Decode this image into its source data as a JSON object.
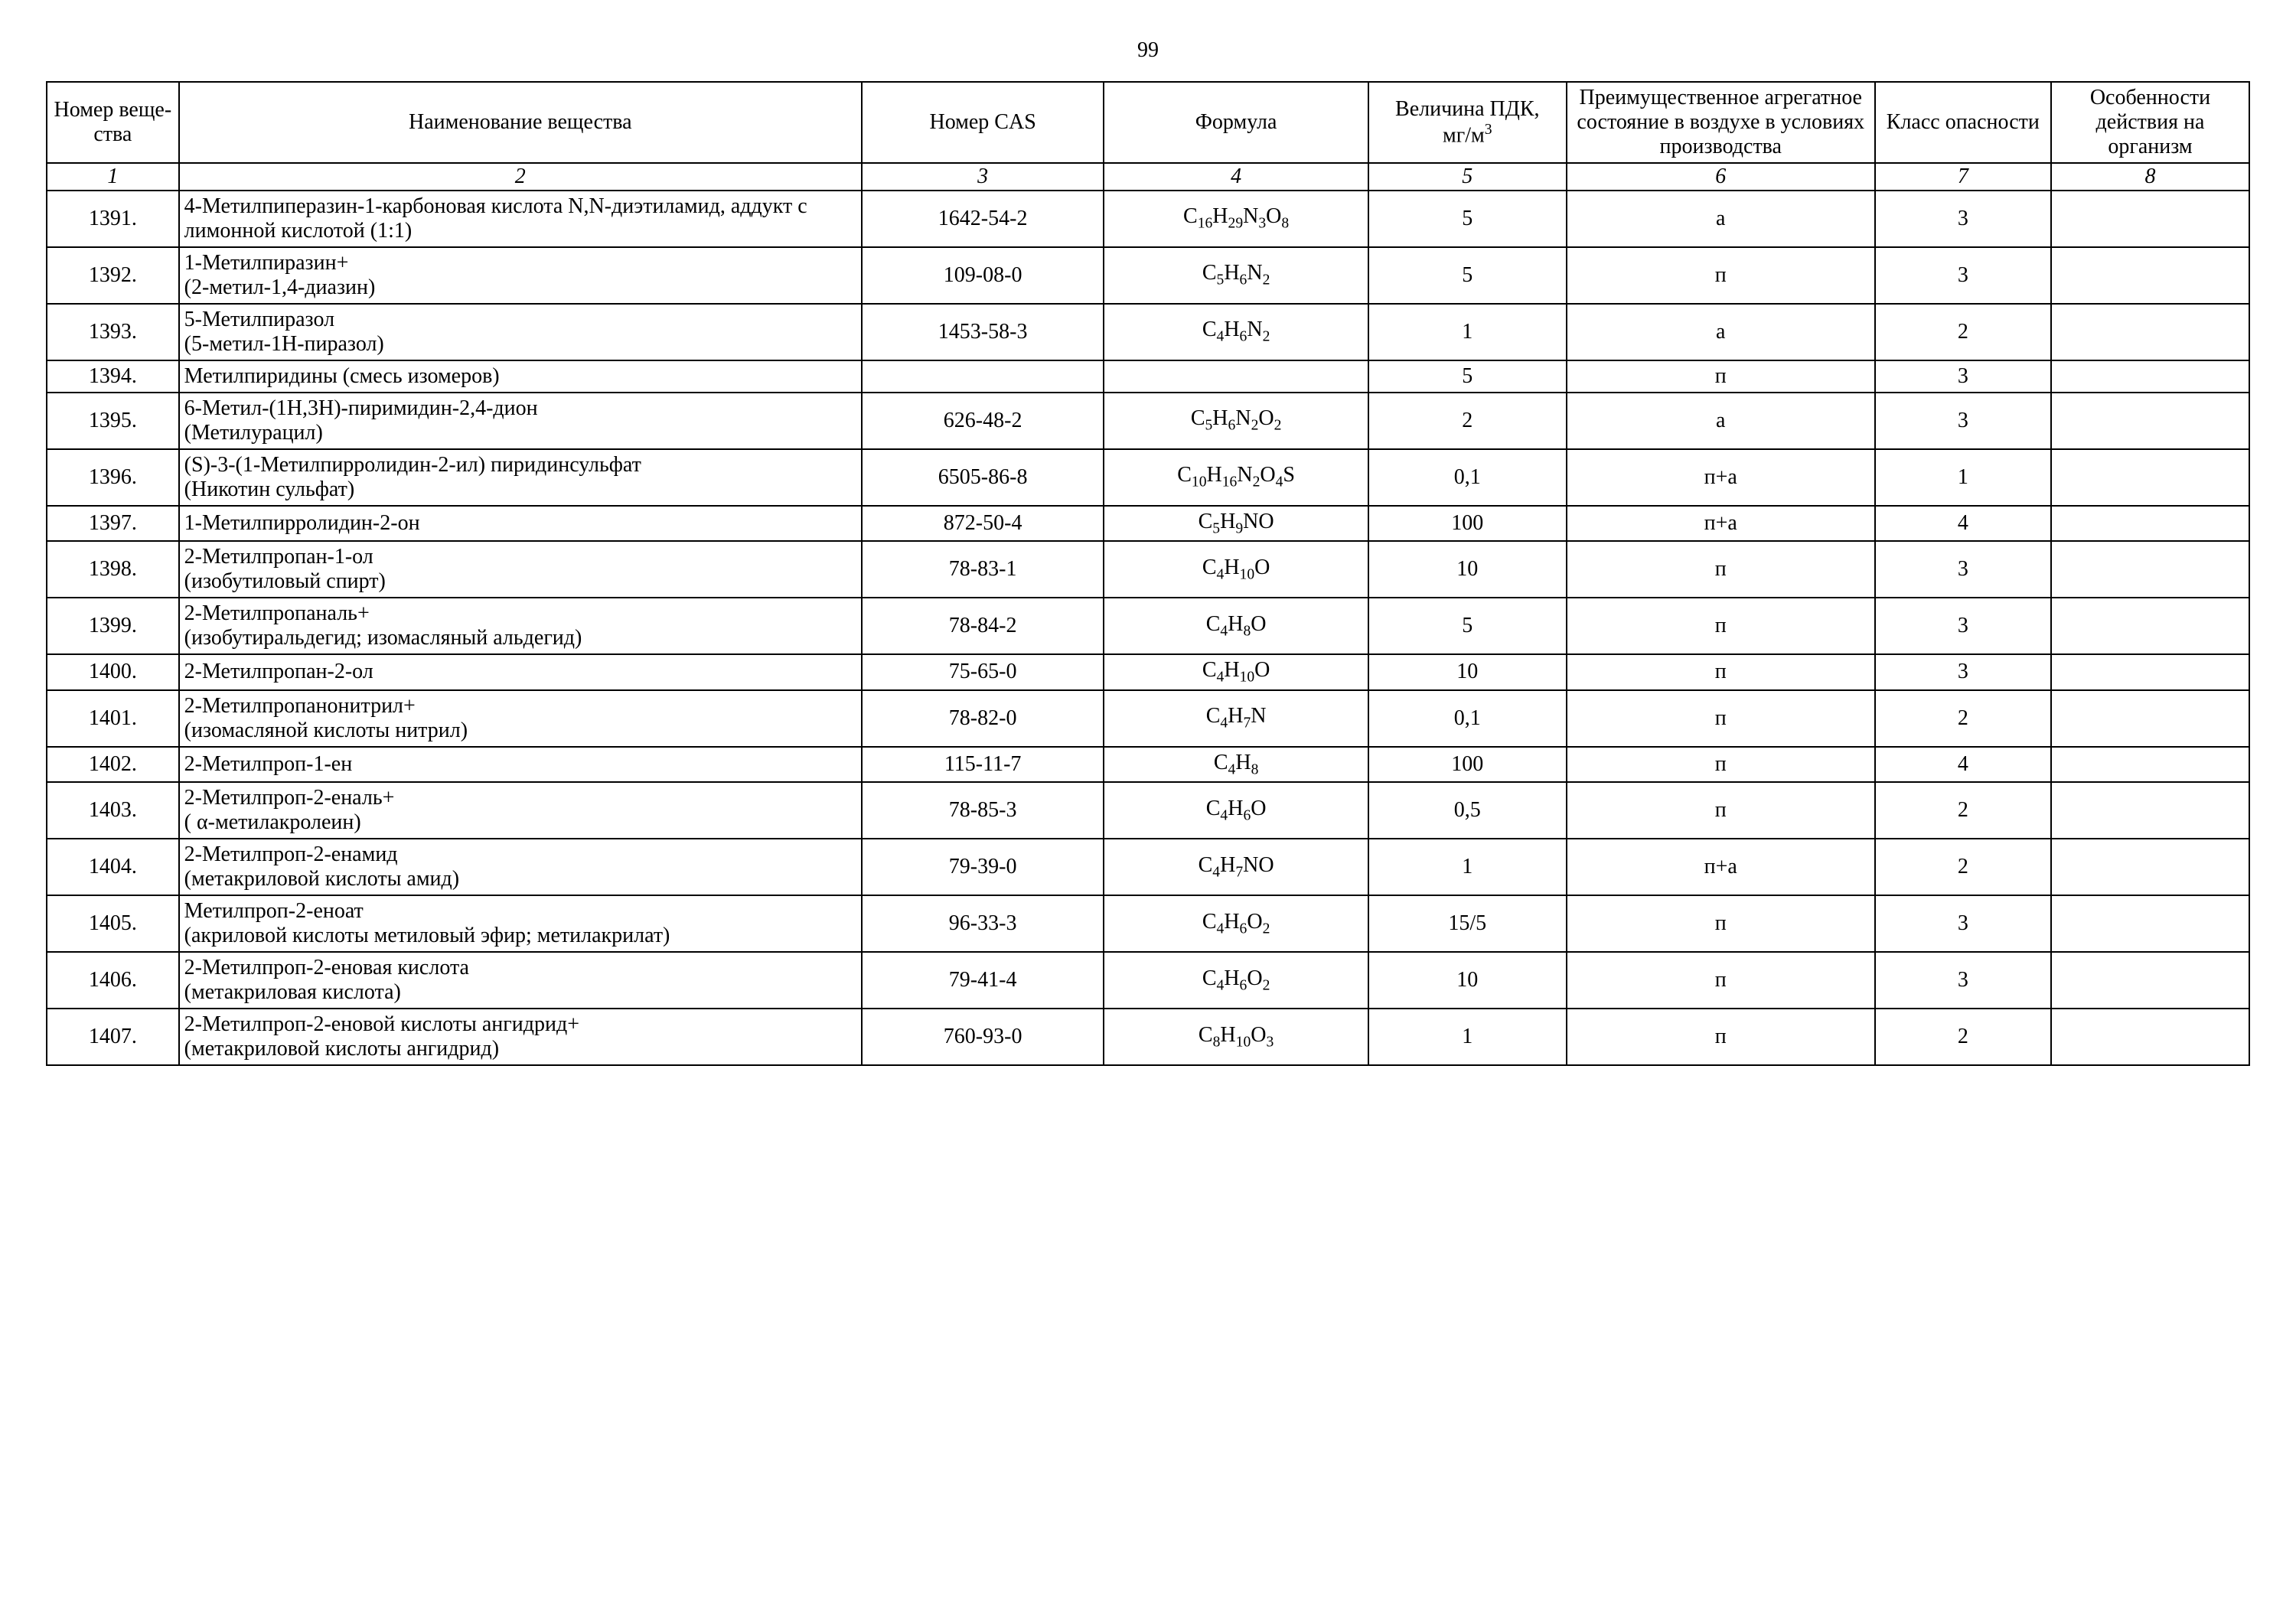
{
  "page_number": "99",
  "headers": {
    "col1": "Номер веще-ства",
    "col2": "Наименование вещества",
    "col3": "Номер CAS",
    "col4": "Формула",
    "col5_l1": "Величина ПДК,",
    "col5_l2": "мг/м",
    "col5_sup": "3",
    "col6": "Преимущественное агрегатное состояние в воздухе в условиях производства",
    "col7": "Класс опасности",
    "col8": "Особенности действия на организм"
  },
  "colnums": [
    "1",
    "2",
    "3",
    "4",
    "5",
    "6",
    "7",
    "8"
  ],
  "rows": [
    {
      "n": "1391.",
      "name": "4-Метилпиперазин-1-карбоновая кислота N,N-диэтиламид, аддукт с лимонной кислотой (1:1)",
      "cas": "1642-54-2",
      "formula": "C<sub>16</sub>H<sub>29</sub>N<sub>3</sub>O<sub>8</sub>",
      "pdk": "5",
      "state": "а",
      "class": "3",
      "eff": ""
    },
    {
      "n": "1392.",
      "name": "1-Метилпиразин+<br>(2-метил-1,4-диазин)",
      "cas": "109-08-0",
      "formula": "C<sub>5</sub>H<sub>6</sub>N<sub>2</sub>",
      "pdk": "5",
      "state": "п",
      "class": "3",
      "eff": ""
    },
    {
      "n": "1393.",
      "name": "5-Метилпиразол<br>(5-метил-1Н-пиразол)",
      "cas": "1453-58-3",
      "formula": "C<sub>4</sub>H<sub>6</sub>N<sub>2</sub>",
      "pdk": "1",
      "state": "а",
      "class": "2",
      "eff": ""
    },
    {
      "n": "1394.",
      "name": "Метилпиридины (смесь изомеров)",
      "cas": "",
      "formula": "",
      "pdk": "5",
      "state": "п",
      "class": "3",
      "eff": ""
    },
    {
      "n": "1395.",
      "name": "6-Метил-(1Н,3Н)-пиримидин-2,4-дион<br>(Метилурацил)",
      "cas": "626-48-2",
      "formula": "C<sub>5</sub>H<sub>6</sub>N<sub>2</sub>O<sub>2</sub>",
      "pdk": "2",
      "state": "а",
      "class": "3",
      "eff": ""
    },
    {
      "n": "1396.",
      "name": "(S)-3-(1-Метилпирролидин-2-ил) пиридинсульфат<br>(Никотин сульфат)",
      "cas": "6505-86-8",
      "formula": "C<sub>10</sub>H<sub>16</sub>N<sub>2</sub>O<sub>4</sub>S",
      "pdk": "0,1",
      "state": "п+а",
      "class": "1",
      "eff": ""
    },
    {
      "n": "1397.",
      "name": "1-Метилпирролидин-2-он",
      "cas": "872-50-4",
      "formula": "C<sub>5</sub>H<sub>9</sub>NO",
      "pdk": "100",
      "state": "п+а",
      "class": "4",
      "eff": ""
    },
    {
      "n": "1398.",
      "name": "2-Метилпропан-1-ол<br>(изобутиловый спирт)",
      "cas": "78-83-1",
      "formula": "C<sub>4</sub>H<sub>10</sub>O",
      "pdk": "10",
      "state": "п",
      "class": "3",
      "eff": ""
    },
    {
      "n": "1399.",
      "name": "2-Метилпропаналь+<br>(изобутиральдегид; изомасляный альдегид)",
      "cas": "78-84-2",
      "formula": "C<sub>4</sub>H<sub>8</sub>O",
      "pdk": "5",
      "state": "п",
      "class": "3",
      "eff": ""
    },
    {
      "n": "1400.",
      "name": "2-Метилпропан-2-ол",
      "cas": "75-65-0",
      "formula": "C<sub>4</sub>H<sub>10</sub>O",
      "pdk": "10",
      "state": "п",
      "class": "3",
      "eff": ""
    },
    {
      "n": "1401.",
      "name": "2-Метилпропанонитрил+<br>(изомасляной кислоты нитрил)",
      "cas": "78-82-0",
      "formula": "C<sub>4</sub>H<sub>7</sub>N",
      "pdk": "0,1",
      "state": "п",
      "class": "2",
      "eff": ""
    },
    {
      "n": "1402.",
      "name": "2-Метилпроп-1-ен",
      "cas": "115-11-7",
      "formula": "C<sub>4</sub>H<sub>8</sub>",
      "pdk": "100",
      "state": "п",
      "class": "4",
      "eff": ""
    },
    {
      "n": "1403.",
      "name": "2-Метилпроп-2-еналь+<br>( α-метилакролеин)",
      "cas": "78-85-3",
      "formula": "C<sub>4</sub>H<sub>6</sub>O",
      "pdk": "0,5",
      "state": "п",
      "class": "2",
      "eff": ""
    },
    {
      "n": "1404.",
      "name": "2-Метилпроп-2-енамид<br>(метакриловой кислоты амид)",
      "cas": "79-39-0",
      "formula": "C<sub>4</sub>H<sub>7</sub>NO",
      "pdk": "1",
      "state": "п+а",
      "class": "2",
      "eff": ""
    },
    {
      "n": "1405.",
      "name": "Метилпроп-2-еноат<br>(акриловой кислоты метиловый эфир; метилакрилат)",
      "cas": "96-33-3",
      "formula": "C<sub>4</sub>H<sub>6</sub>O<sub>2</sub>",
      "pdk": "15/5",
      "state": "п",
      "class": "3",
      "eff": ""
    },
    {
      "n": "1406.",
      "name": "2-Метилпроп-2-еновая кислота<br>(метакриловая кислота)",
      "cas": "79-41-4",
      "formula": "C<sub>4</sub>H<sub>6</sub>O<sub>2</sub>",
      "pdk": "10",
      "state": "п",
      "class": "3",
      "eff": ""
    },
    {
      "n": "1407.",
      "name": "2-Метилпроп-2-еновой кислоты ангидрид+<br>(метакриловой кислоты  ангидрид)",
      "cas": "760-93-0",
      "formula": "C<sub>8</sub>H<sub>10</sub>O<sub>3</sub>",
      "pdk": "1",
      "state": "п",
      "class": "2",
      "eff": ""
    }
  ],
  "style": {
    "font_family": "Times New Roman",
    "font_size_pt": 14,
    "border_color": "#000000",
    "background_color": "#ffffff",
    "text_color": "#000000"
  }
}
